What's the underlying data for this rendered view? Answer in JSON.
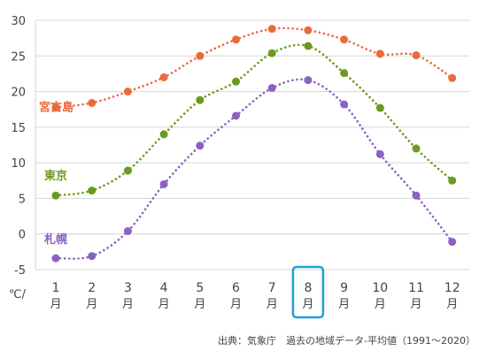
{
  "chart_data": {
    "type": "line",
    "categories": [
      {
        "num": "1",
        "unit": "月"
      },
      {
        "num": "2",
        "unit": "月"
      },
      {
        "num": "3",
        "unit": "月"
      },
      {
        "num": "4",
        "unit": "月"
      },
      {
        "num": "5",
        "unit": "月"
      },
      {
        "num": "6",
        "unit": "月"
      },
      {
        "num": "7",
        "unit": "月"
      },
      {
        "num": "8",
        "unit": "月"
      },
      {
        "num": "9",
        "unit": "月"
      },
      {
        "num": "10",
        "unit": "月"
      },
      {
        "num": "11",
        "unit": "月"
      },
      {
        "num": "12",
        "unit": "月"
      }
    ],
    "highlight_category_index": 7,
    "highlight_color": "#1da1d8",
    "y_unit_label": "℃/",
    "ylim": [
      -5,
      30
    ],
    "yticks": [
      -5,
      0,
      5,
      10,
      15,
      20,
      25,
      30
    ],
    "grid": true,
    "line_style": "dotted",
    "series": [
      {
        "name": "宮古島",
        "color": "#ea6a3e",
        "values": [
          17.8,
          18.4,
          20.0,
          22.0,
          25.0,
          27.3,
          28.8,
          28.6,
          27.3,
          25.3,
          25.1,
          21.9
        ]
      },
      {
        "name": "東京",
        "color": "#6b9a1f",
        "values": [
          5.4,
          6.1,
          8.9,
          14.0,
          18.8,
          21.4,
          25.4,
          26.4,
          22.6,
          17.7,
          12.0,
          7.5
        ]
      },
      {
        "name": "札幌",
        "color": "#8b62c0",
        "values": [
          -3.4,
          -3.1,
          0.4,
          7.0,
          12.4,
          16.6,
          20.5,
          21.6,
          18.2,
          11.2,
          5.4,
          -1.1
        ]
      }
    ],
    "source": "出典：気象庁　過去の地域データ-平均値（1991～2020）"
  }
}
